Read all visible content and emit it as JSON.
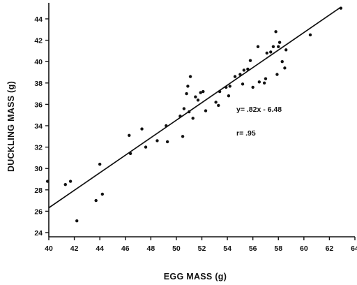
{
  "chart_data": {
    "type": "scatter",
    "xlabel": "EGG MASS (g)",
    "ylabel": "DUCKLING MASS (g)",
    "xlim": [
      40,
      64
    ],
    "ylim": [
      24,
      45
    ],
    "x_ticks": [
      "40",
      "42",
      "44",
      "46",
      "48",
      "50",
      "52",
      "54",
      "56",
      "58",
      "60",
      "62",
      "64"
    ],
    "y_ticks": [
      "24",
      "26",
      "28",
      "30",
      "32",
      "34",
      "36",
      "38",
      "40",
      "42",
      "44"
    ],
    "grid": false,
    "annotations": {
      "equation": "y= .82x - 6.48",
      "r_value": "r= .95"
    },
    "regression": {
      "slope": 0.82,
      "intercept": -6.48
    },
    "points": [
      [
        39.9,
        28.8
      ],
      [
        41.3,
        28.5
      ],
      [
        41.7,
        28.8
      ],
      [
        42.2,
        25.1
      ],
      [
        43.7,
        27.0
      ],
      [
        44.0,
        30.4
      ],
      [
        44.2,
        27.6
      ],
      [
        46.3,
        33.1
      ],
      [
        46.4,
        31.4
      ],
      [
        47.3,
        33.7
      ],
      [
        47.6,
        32.0
      ],
      [
        48.5,
        32.6
      ],
      [
        49.2,
        34.0
      ],
      [
        49.3,
        32.5
      ],
      [
        50.3,
        34.9
      ],
      [
        50.5,
        33.0
      ],
      [
        50.6,
        35.6
      ],
      [
        50.8,
        37.0
      ],
      [
        50.9,
        37.7
      ],
      [
        51.0,
        35.3
      ],
      [
        51.1,
        38.6
      ],
      [
        51.3,
        34.7
      ],
      [
        51.5,
        36.7
      ],
      [
        51.7,
        36.4
      ],
      [
        51.9,
        37.1
      ],
      [
        52.1,
        37.2
      ],
      [
        52.3,
        35.4
      ],
      [
        53.1,
        36.2
      ],
      [
        53.3,
        35.9
      ],
      [
        53.4,
        37.2
      ],
      [
        53.9,
        37.6
      ],
      [
        54.1,
        36.8
      ],
      [
        54.2,
        37.7
      ],
      [
        54.6,
        38.6
      ],
      [
        55.0,
        38.8
      ],
      [
        55.2,
        37.9
      ],
      [
        55.3,
        39.2
      ],
      [
        55.6,
        39.3
      ],
      [
        55.8,
        40.1
      ],
      [
        56.0,
        37.6
      ],
      [
        56.4,
        41.4
      ],
      [
        56.5,
        38.1
      ],
      [
        56.9,
        38.0
      ],
      [
        57.0,
        38.4
      ],
      [
        57.1,
        40.8
      ],
      [
        57.4,
        40.9
      ],
      [
        57.6,
        41.4
      ],
      [
        57.8,
        42.8
      ],
      [
        58.0,
        41.4
      ],
      [
        58.1,
        41.8
      ],
      [
        57.9,
        38.8
      ],
      [
        58.3,
        40.0
      ],
      [
        58.5,
        39.4
      ],
      [
        58.6,
        41.1
      ],
      [
        60.5,
        42.5
      ],
      [
        62.9,
        45.0
      ]
    ]
  }
}
